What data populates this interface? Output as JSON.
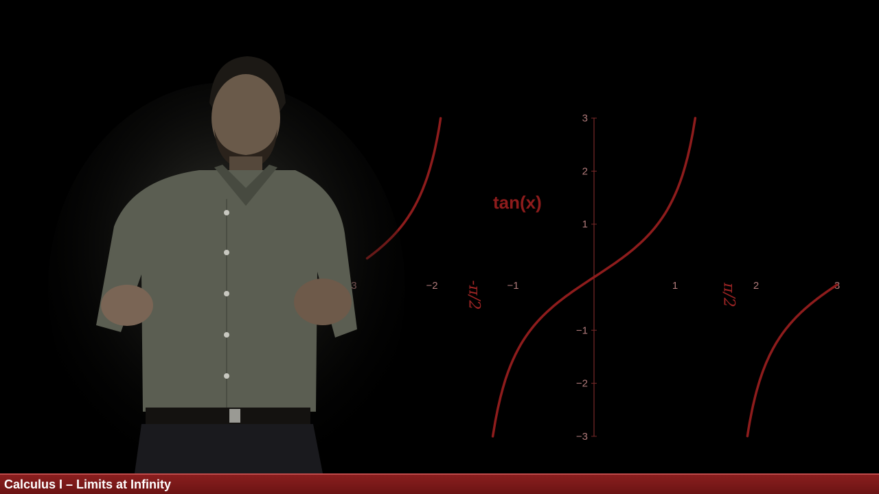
{
  "caption": {
    "title": "Calculus I – Limits at Infinity"
  },
  "colors": {
    "curve": "#8e1c1c",
    "axis": "#7a2a2a",
    "tick_label": "#b07a7a",
    "handwriting": "#a02525",
    "function_label": "#8e1c1c",
    "caption_bar": "#7a1818",
    "presenter_shirt": "#5b5e52",
    "presenter_skin": "#6a5a4a"
  },
  "annotations": {
    "function_name": "tan(x)"
  },
  "chart_data": {
    "type": "line",
    "function": "tan(x)",
    "xlim": [
      -3,
      3
    ],
    "ylim": [
      -3,
      3
    ],
    "x_ticks": [
      -3,
      -2,
      -1,
      1,
      2,
      3
    ],
    "y_ticks": [
      -3,
      -2,
      -1,
      1,
      2,
      3
    ],
    "x_tick_labels": [
      "−3",
      "−2",
      "−1",
      "1",
      "2",
      "3"
    ],
    "y_tick_labels": [
      "−3",
      "−2",
      "−1",
      "1",
      "2",
      "3"
    ],
    "branches": [
      {
        "x_start": -2.8,
        "x_end": -1.893
      },
      {
        "x_start": -1.249,
        "x_end": 1.249
      },
      {
        "x_start": 1.893,
        "x_end": 3
      }
    ],
    "asymptote_marks": [
      {
        "x": -1.5708,
        "text": "-π/2"
      },
      {
        "x": 1.5708,
        "text": "π/2"
      }
    ]
  }
}
